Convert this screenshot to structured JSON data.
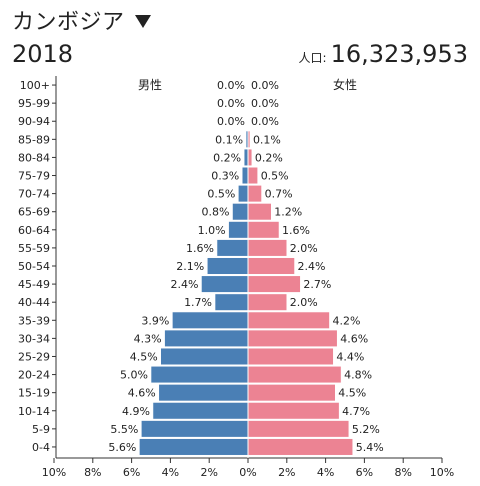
{
  "header": {
    "country": "カンボジア",
    "year": "2018",
    "population_label": "人口:",
    "population_value": "16,323,953"
  },
  "chart_data": {
    "type": "bar",
    "orientation": "horizontal-population-pyramid",
    "male_label": "男性",
    "female_label": "女性",
    "categories": [
      "100+",
      "95-99",
      "90-94",
      "85-89",
      "80-84",
      "75-79",
      "70-74",
      "65-69",
      "60-64",
      "55-59",
      "50-54",
      "45-49",
      "40-44",
      "35-39",
      "30-34",
      "25-29",
      "20-24",
      "15-19",
      "10-14",
      "5-9",
      "0-4"
    ],
    "series": [
      {
        "name": "男性",
        "color": "#4a7fb5",
        "values": [
          0.0,
          0.0,
          0.0,
          0.1,
          0.2,
          0.3,
          0.5,
          0.8,
          1.0,
          1.6,
          2.1,
          2.4,
          1.7,
          3.9,
          4.3,
          4.5,
          5.0,
          4.6,
          4.9,
          5.5,
          5.6
        ],
        "labels": [
          "0.0%",
          "0.0%",
          "0.0%",
          "0.1%",
          "0.2%",
          "0.3%",
          "0.5%",
          "0.8%",
          "1.0%",
          "1.6%",
          "2.1%",
          "2.4%",
          "1.7%",
          "3.9%",
          "4.3%",
          "4.5%",
          "5.0%",
          "4.6%",
          "4.9%",
          "5.5%",
          "5.6%"
        ]
      },
      {
        "name": "女性",
        "color": "#ec8393",
        "values": [
          0.0,
          0.0,
          0.0,
          0.1,
          0.2,
          0.5,
          0.7,
          1.2,
          1.6,
          2.0,
          2.4,
          2.7,
          2.0,
          4.2,
          4.6,
          4.4,
          4.8,
          4.5,
          4.7,
          5.2,
          5.4
        ],
        "labels": [
          "0.0%",
          "0.0%",
          "0.0%",
          "0.1%",
          "0.2%",
          "0.5%",
          "0.7%",
          "1.2%",
          "1.6%",
          "2.0%",
          "2.4%",
          "2.7%",
          "2.0%",
          "4.2%",
          "4.6%",
          "4.4%",
          "4.8%",
          "4.5%",
          "4.7%",
          "5.2%",
          "5.4%"
        ]
      }
    ],
    "x_ticks": [
      "10%",
      "8%",
      "6%",
      "4%",
      "2%",
      "0%",
      "2%",
      "4%",
      "6%",
      "8%",
      "10%"
    ],
    "xlim": [
      -10,
      10
    ]
  }
}
